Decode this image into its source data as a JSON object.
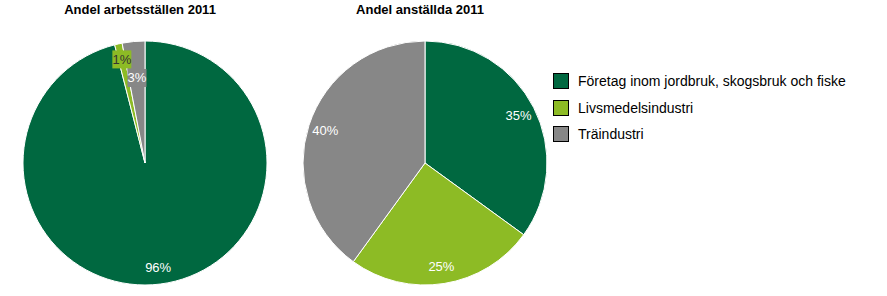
{
  "chart_data": [
    {
      "type": "pie",
      "title": "Andel arbetsställen 2011",
      "categories": [
        "Företag inom jordbruk, skogsbruk och fiske",
        "Livsmedelsindustri",
        "Träindustri"
      ],
      "values": [
        96,
        1,
        3
      ],
      "value_labels": [
        "96%",
        "1%",
        "3%"
      ],
      "colors": [
        "#006840",
        "#8dbb25",
        "#878787"
      ],
      "data_labels": true
    },
    {
      "type": "pie",
      "title": "Andel anställda 2011",
      "categories": [
        "Företag inom jordbruk, skogsbruk och fiske",
        "Livsmedelsindustri",
        "Träindustri"
      ],
      "values": [
        35,
        25,
        40
      ],
      "value_labels": [
        "35%",
        "25%",
        "40%"
      ],
      "colors": [
        "#006840",
        "#8dbb25",
        "#878787"
      ],
      "data_labels": true
    }
  ]
}
